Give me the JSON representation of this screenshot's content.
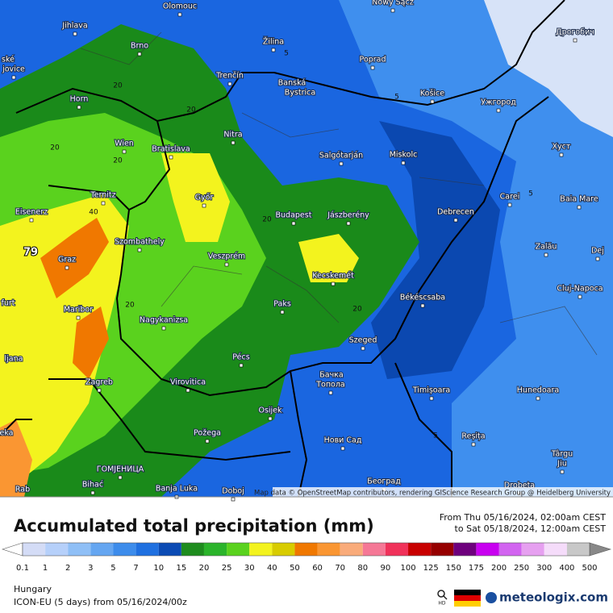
{
  "map": {
    "places": [
      "Olomouc",
      "Jihlava",
      "Brno",
      "ské",
      "jovice",
      "Žilina",
      "Nowy Sącz",
      "Poprad",
      "Дрогобич",
      "Trenčín",
      "Banská",
      "Bystrica",
      "Košice",
      "Ужгород",
      "Horn",
      "Nitra",
      "Wien",
      "Bratislava",
      "Salgótarján",
      "Miskolc",
      "Хуст",
      "Ternitz",
      "Győr",
      "Budapest",
      "Jászberény",
      "Debrecen",
      "Carei",
      "Baia Mare",
      "Eisenerz",
      "Szombathely",
      "Veszprém",
      "Graz",
      "Kecskemét",
      "Zalău",
      "Dej",
      "Cluj-Napoca",
      "Maribor",
      "Nagykanizsa",
      "Paks",
      "Békéscsaba",
      "furt",
      "Szeged",
      "Pécs",
      "ljana",
      "Virovitica",
      "Zagreb",
      "Бачка",
      "Топола",
      "Timișoara",
      "Hunedoara",
      "Osijek",
      "Požega",
      "Нови Сад",
      "Reșița",
      "eka",
      "Târgu",
      "Jiu",
      "ГОМЈЕНИЦА",
      "Bihać",
      "Banja Luka",
      "Doboj",
      "Београд",
      "Rab",
      "Drobeta"
    ],
    "contour_labels": [
      5,
      5,
      20,
      20,
      20,
      20,
      40,
      79,
      20,
      20,
      20,
      5,
      5
    ],
    "attribution": "Map data © OpenStreetMap contributors, rendering GIScience Research Group @ Heidelberg University"
  },
  "title": "Accumulated total precipitation (mm)",
  "period": [
    "From Thu 05/16/2024, 02:00am CEST",
    "to Sat 05/18/2024, 12:00am CEST"
  ],
  "legend": {
    "values": [
      0.1,
      1,
      2,
      3,
      5,
      7,
      10,
      15,
      20,
      25,
      30,
      40,
      50,
      60,
      70,
      80,
      90,
      100,
      125,
      150,
      175,
      200,
      250,
      300,
      400,
      500
    ],
    "colors": [
      "#d4dcf6",
      "#b6d0fa",
      "#8fbff6",
      "#65a6f1",
      "#3d8ceb",
      "#1f70e0",
      "#0b4bb4",
      "#1e8c1e",
      "#2bb42b",
      "#5ad21e",
      "#f3f31e",
      "#d8cc00",
      "#f07800",
      "#fa9632",
      "#f9ab7a",
      "#f57896",
      "#f0325a",
      "#c80000",
      "#960000",
      "#6e007d",
      "#c800f0",
      "#d264f0",
      "#e6a0f0",
      "#f5dcfa",
      "#c8c8c8"
    ]
  },
  "region": "Hungary",
  "model": "ICON-EU (5 days) from 05/16/2024/00z",
  "brand": {
    "badge": "HD",
    "name": "meteologix.com"
  }
}
